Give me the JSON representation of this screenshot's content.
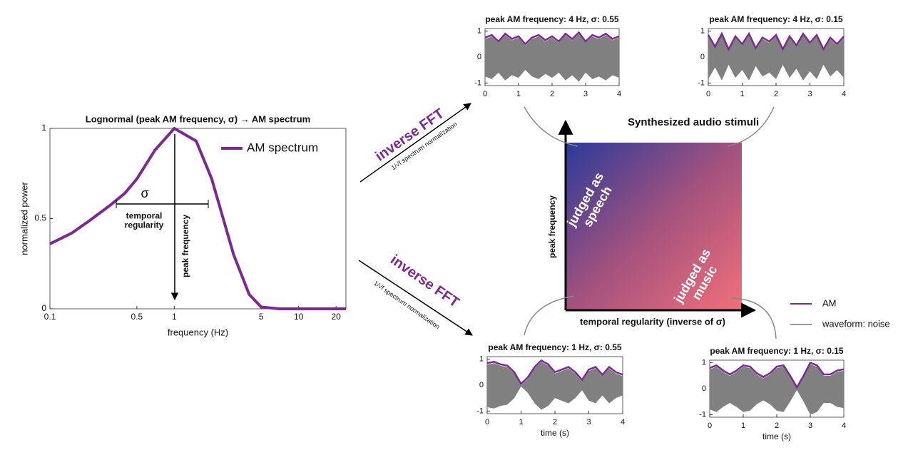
{
  "chart_data": [
    {
      "type": "line",
      "title": "Lognormal (peak AM frequency, σ) → AM spectrum",
      "xlabel": "frequency (Hz)",
      "ylabel": "normalized power",
      "xscale": "log",
      "x": [
        0.1,
        0.15,
        0.2,
        0.3,
        0.4,
        0.5,
        0.7,
        1,
        1.5,
        2,
        3,
        4,
        5,
        7,
        10,
        15,
        20,
        24
      ],
      "series": [
        {
          "name": "AM spectrum",
          "color": "#7b2a8e",
          "values": [
            0.36,
            0.42,
            0.48,
            0.57,
            0.64,
            0.72,
            0.88,
            1,
            0.93,
            0.72,
            0.3,
            0.08,
            0.01,
            0,
            0,
            0,
            0,
            0
          ]
        }
      ],
      "xlim": [
        0.1,
        24
      ],
      "ylim": [
        0,
        1
      ],
      "xticks": [
        0.1,
        0.5,
        1,
        5,
        10,
        20
      ],
      "yticks": [
        0,
        0.5,
        1
      ],
      "legend": "top-right",
      "annotations": [
        "σ",
        "temporal regularity",
        "peak frequency"
      ]
    },
    {
      "type": "line",
      "title": "peak AM frequency: 4 Hz, σ: 0.55",
      "fill_color": "#808080",
      "x": [
        0,
        0.2,
        0.4,
        0.6,
        0.8,
        1,
        1.2,
        1.4,
        1.6,
        1.8,
        2,
        2.2,
        2.4,
        2.6,
        2.8,
        3,
        3.2,
        3.4,
        3.6,
        3.8,
        4
      ],
      "series": [
        {
          "color": "#7b2a8e",
          "values": [
            0.75,
            0.85,
            0.6,
            0.9,
            0.7,
            0.8,
            0.5,
            0.75,
            0.85,
            0.65,
            0.8,
            0.6,
            0.9,
            0.7,
            0.95,
            0.6,
            0.85,
            0.75,
            0.9,
            0.7,
            0.8
          ]
        }
      ],
      "xlim": [
        0,
        4
      ],
      "ylim": [
        -1.1,
        1.1
      ],
      "xticks": [
        0,
        1,
        2,
        3,
        4
      ],
      "yticks": [
        -1,
        0,
        1
      ]
    },
    {
      "type": "line",
      "title": "peak AM frequency: 4 Hz, σ: 0.15",
      "fill_color": "#808080",
      "x": [
        0,
        0.2,
        0.4,
        0.6,
        0.8,
        1,
        1.2,
        1.4,
        1.6,
        1.8,
        2,
        2.2,
        2.4,
        2.6,
        2.8,
        3,
        3.2,
        3.4,
        3.6,
        3.8,
        4
      ],
      "series": [
        {
          "color": "#7b2a8e",
          "values": [
            0.85,
            0.4,
            0.9,
            0.3,
            0.8,
            0.5,
            0.9,
            0.35,
            0.75,
            0.6,
            0.85,
            0.3,
            0.8,
            0.45,
            0.9,
            0.55,
            0.85,
            0.3,
            0.75,
            0.5,
            0.8
          ]
        }
      ],
      "xlim": [
        0,
        4
      ],
      "ylim": [
        -1.1,
        1.1
      ],
      "xticks": [
        0,
        1,
        2,
        3,
        4
      ],
      "yticks": [
        -1,
        0,
        1
      ]
    },
    {
      "type": "line",
      "title": "peak AM frequency: 1 Hz, σ: 0.55",
      "xlabel": "time (s)",
      "fill_color": "#808080",
      "x": [
        0,
        0.2,
        0.4,
        0.6,
        0.8,
        1,
        1.2,
        1.4,
        1.6,
        1.8,
        2,
        2.2,
        2.4,
        2.6,
        2.8,
        3,
        3.2,
        3.4,
        3.6,
        3.8,
        4
      ],
      "series": [
        {
          "color": "#7b2a8e",
          "values": [
            0.85,
            0.9,
            0.8,
            0.75,
            0.5,
            0.05,
            0.3,
            0.7,
            0.95,
            0.8,
            0.5,
            0.6,
            0.7,
            0.5,
            0.2,
            0.6,
            0.7,
            0.4,
            0.7,
            0.5,
            0.4
          ]
        }
      ],
      "xlim": [
        0,
        4
      ],
      "ylim": [
        -1.1,
        1.1
      ],
      "xticks": [
        0,
        1,
        2,
        3,
        4
      ],
      "yticks": [
        -1,
        0,
        1
      ]
    },
    {
      "type": "line",
      "title": "peak AM frequency: 1 Hz, σ: 0.15",
      "xlabel": "time (s)",
      "fill_color": "#808080",
      "x": [
        0,
        0.2,
        0.4,
        0.6,
        0.8,
        1,
        1.2,
        1.4,
        1.6,
        1.8,
        2,
        2.2,
        2.4,
        2.6,
        2.8,
        3,
        3.2,
        3.4,
        3.6,
        3.8,
        4
      ],
      "series": [
        {
          "color": "#7b2a8e",
          "values": [
            0.8,
            0.9,
            0.7,
            0.55,
            0.7,
            0.9,
            0.85,
            0.6,
            0.45,
            0.6,
            0.85,
            0.9,
            0.5,
            0.05,
            0.5,
            1,
            0.9,
            0.55,
            0.55,
            0.7,
            0.75
          ]
        }
      ],
      "xlim": [
        0,
        4
      ],
      "ylim": [
        -1.1,
        1.1
      ],
      "xticks": [
        0,
        1,
        2,
        3,
        4
      ],
      "yticks": [
        -1,
        0,
        1
      ]
    }
  ],
  "diagram": {
    "arrow_label": "inverse FFT",
    "normalization": "1/√f spectrum normalization",
    "arrow_label_2": "inverse FFT",
    "normalization_2": "1/√f spectrum normalization",
    "square_title": "Synthesized audio stimuli",
    "y_axis": "peak frequency",
    "x_axis": "temporal regularity (inverse of σ)",
    "speech": "judged as speech",
    "music": "judged as music",
    "legend": [
      {
        "name": "AM",
        "color": "#7b2a8e"
      },
      {
        "name": "waveform: noise",
        "color": "#999999"
      }
    ]
  }
}
